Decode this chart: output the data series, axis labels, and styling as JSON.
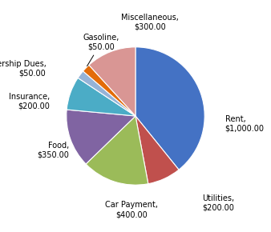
{
  "labels": [
    "Rent",
    "Utilities",
    "Car Payment",
    "Food",
    "Insurance",
    "Membership Dues",
    "Gasoline",
    "Miscellaneous"
  ],
  "values": [
    1000,
    200,
    400,
    350,
    200,
    50,
    50,
    300
  ],
  "colors": [
    "#4472C4",
    "#C0504D",
    "#9BBB59",
    "#8064A2",
    "#4BACC6",
    "#95B3D7",
    "#E36C09",
    "#D99694"
  ],
  "startangle": 90,
  "figsize": [
    3.38,
    2.9
  ],
  "dpi": 100,
  "label_fontsize": 7.0,
  "bg_color": "#ffffff"
}
